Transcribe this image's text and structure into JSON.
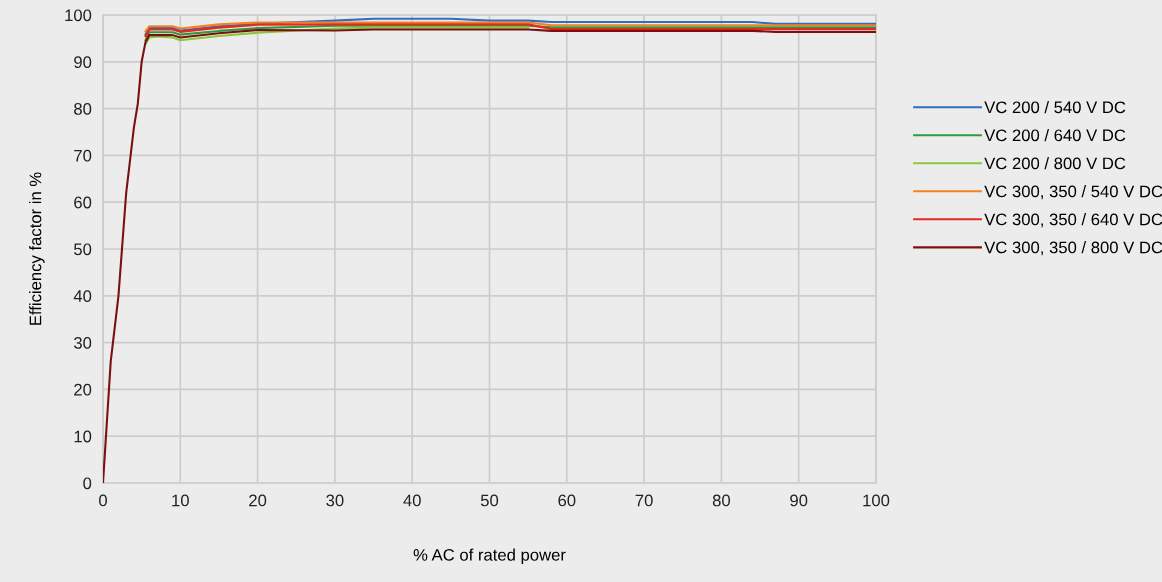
{
  "chart_data": {
    "type": "line",
    "xlabel": "% AC of rated power",
    "ylabel": "Efficiency factor in %",
    "x": [
      0,
      1,
      2,
      3,
      4,
      4.5,
      5,
      5.5,
      6,
      7,
      9,
      10,
      15,
      20,
      30,
      35,
      45,
      50,
      55,
      58,
      70,
      84,
      87,
      100
    ],
    "xlim": [
      0,
      100
    ],
    "xticks": [
      0,
      10,
      20,
      30,
      40,
      50,
      60,
      70,
      80,
      90,
      100
    ],
    "ylim": [
      0,
      100
    ],
    "yticks": [
      0,
      10,
      20,
      30,
      40,
      50,
      60,
      70,
      80,
      90,
      100
    ],
    "grid": true,
    "legend": "right",
    "marker": "none",
    "line_style": "solid",
    "series": [
      {
        "name": "VC 200 / 540 V DC",
        "color": "#2e6fc0",
        "values": [
          null,
          null,
          null,
          null,
          null,
          null,
          null,
          95.9,
          97.2,
          97.2,
          97.2,
          96.7,
          97.6,
          98.1,
          98.8,
          99.2,
          99.2,
          98.8,
          98.8,
          98.5,
          98.5,
          98.5,
          98.1,
          98.1
        ]
      },
      {
        "name": "VC 200 / 640 V DC",
        "color": "#2e9a3c",
        "values": [
          null,
          null,
          null,
          null,
          null,
          null,
          null,
          94.6,
          96.3,
          96.3,
          96.3,
          95.8,
          96.6,
          97.2,
          97.7,
          97.7,
          97.7,
          97.7,
          97.7,
          97.4,
          97.4,
          97.4,
          97.4,
          97.4
        ]
      },
      {
        "name": "VC 200 / 800 V DC",
        "color": "#8cc63f",
        "values": [
          null,
          null,
          null,
          null,
          null,
          null,
          null,
          93.8,
          95.2,
          95.4,
          95.2,
          94.6,
          95.5,
          96.2,
          97.1,
          97.3,
          97.3,
          97.3,
          97.3,
          null,
          null,
          null,
          null,
          null
        ]
      },
      {
        "name": "VC 300, 350 / 540 V DC",
        "color": "#f58220",
        "values": [
          null,
          null,
          null,
          null,
          null,
          null,
          null,
          96.5,
          97.6,
          97.6,
          97.6,
          97.1,
          98,
          98.4,
          98.4,
          98.4,
          98.4,
          98.4,
          98.4,
          97.8,
          97.8,
          97.8,
          97.8,
          97.8
        ]
      },
      {
        "name": "VC 300, 350 / 640 V DC",
        "color": "#e8281e",
        "values": [
          null,
          null,
          null,
          null,
          null,
          null,
          null,
          95.5,
          96.9,
          96.9,
          96.9,
          96.4,
          97.3,
          97.9,
          98,
          98,
          98,
          98,
          98,
          97,
          97,
          97,
          97,
          97
        ]
      },
      {
        "name": "VC 300, 350 / 800 V DC",
        "color": "#7a1010",
        "values": [
          0,
          26,
          40,
          62,
          76,
          81,
          90,
          94.2,
          95.7,
          95.7,
          95.7,
          95.2,
          96.1,
          96.8,
          96.7,
          96.9,
          96.9,
          96.9,
          96.9,
          96.6,
          96.6,
          96.6,
          96.4,
          96.4
        ]
      }
    ]
  }
}
